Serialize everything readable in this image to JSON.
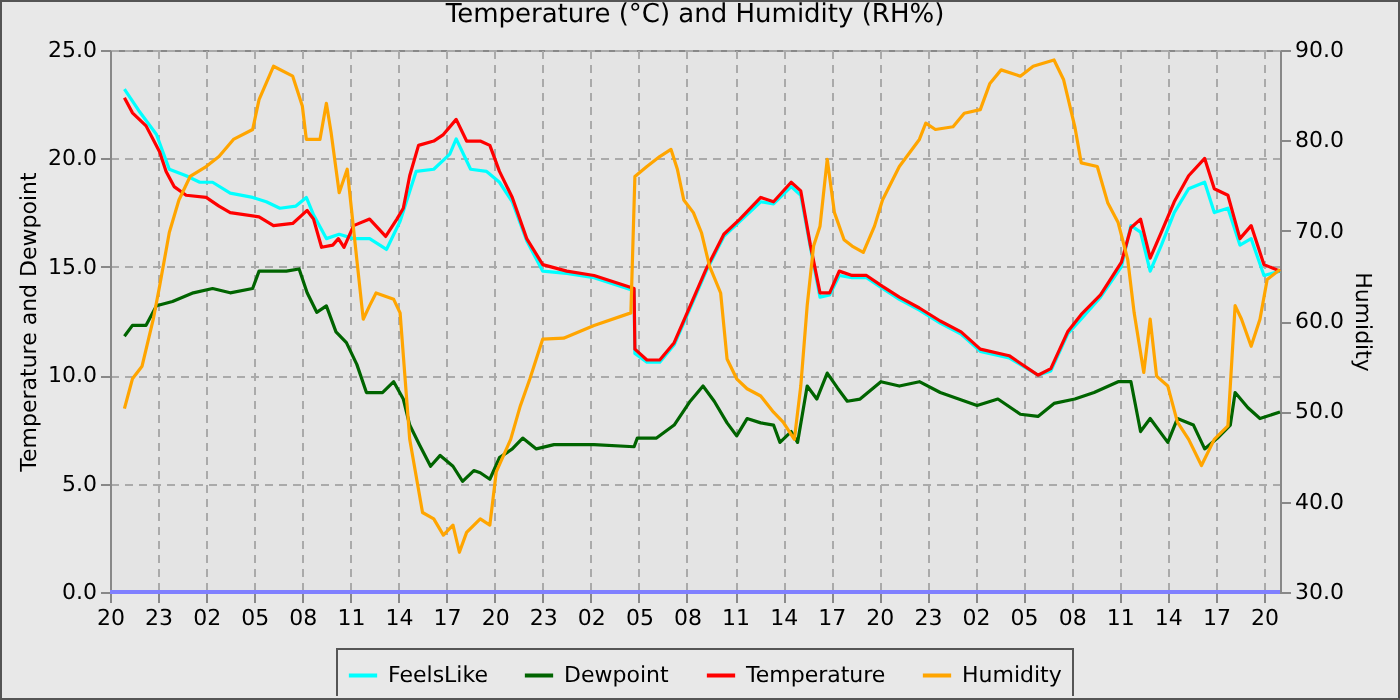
{
  "chart_data": {
    "type": "line",
    "title": "Temperature (°C) and Humidity (RH%)",
    "ylabel": "Temperature and Dewpoint",
    "y2label": "Humidity",
    "xlim": [
      "--01-01T20:00",
      "--01-04T21:00"
    ],
    "xticks": [
      {
        "value": "--01-01T20:00",
        "label": "20"
      },
      {
        "value": "--01-01T23:00",
        "label": "23"
      },
      {
        "value": "--01-02T02:00",
        "label": "02"
      },
      {
        "value": "--01-02T05:00",
        "label": "05"
      },
      {
        "value": "--01-02T08:00",
        "label": "08"
      },
      {
        "value": "--01-02T11:00",
        "label": "11"
      },
      {
        "value": "--01-02T14:00",
        "label": "14"
      },
      {
        "value": "--01-02T17:00",
        "label": "17"
      },
      {
        "value": "--01-02T20:00",
        "label": "20"
      },
      {
        "value": "--01-02T23:00",
        "label": "23"
      },
      {
        "value": "--01-03T02:00",
        "label": "02"
      },
      {
        "value": "--01-03T05:00",
        "label": "05"
      },
      {
        "value": "--01-03T08:00",
        "label": "08"
      },
      {
        "value": "--01-03T11:00",
        "label": "11"
      },
      {
        "value": "--01-03T14:00",
        "label": "14"
      },
      {
        "value": "--01-03T17:00",
        "label": "17"
      },
      {
        "value": "--01-03T20:00",
        "label": "20"
      },
      {
        "value": "--01-03T23:00",
        "label": "23"
      },
      {
        "value": "--01-04T02:00",
        "label": "02"
      },
      {
        "value": "--01-04T05:00",
        "label": "05"
      },
      {
        "value": "--01-04T08:00",
        "label": "08"
      },
      {
        "value": "--01-04T11:00",
        "label": "11"
      },
      {
        "value": "--01-04T14:00",
        "label": "14"
      },
      {
        "value": "--01-04T17:00",
        "label": "17"
      },
      {
        "value": "--01-04T20:00",
        "label": "20"
      }
    ],
    "ylim": [
      0,
      25
    ],
    "yticks": [
      {
        "value": 0,
        "label": "0.0"
      },
      {
        "value": 5,
        "label": "5.0"
      },
      {
        "value": 10,
        "label": "10.0"
      },
      {
        "value": 15,
        "label": "15.0"
      },
      {
        "value": 20,
        "label": "20.0"
      },
      {
        "value": 25,
        "label": "25.0"
      }
    ],
    "y2lim": [
      30,
      90
    ],
    "y2ticks": [
      {
        "value": 30,
        "label": "30.0"
      },
      {
        "value": 40,
        "label": "40.0"
      },
      {
        "value": 50,
        "label": "50.0"
      },
      {
        "value": 60,
        "label": "60.0"
      },
      {
        "value": 70,
        "label": "70.0"
      },
      {
        "value": 80,
        "label": "80.0"
      },
      {
        "value": 90,
        "label": "90.0"
      }
    ],
    "grid": true,
    "legend": "bottom",
    "ref_lines": [
      {
        "axis": "y",
        "value": 0,
        "color": "#8080ff"
      }
    ],
    "series": [
      {
        "name": "FeelsLike",
        "color": "#00ffff",
        "x": [
          "--01-01T20:54",
          "--01-01T21:48",
          "--01-01T22:54",
          "--01-01T23:42",
          "--01-02T00:45",
          "--01-02T01:36",
          "--01-02T02:24",
          "--01-02T03:30",
          "--01-02T04:54",
          "--01-02T05:45",
          "--01-02T06:36",
          "--01-02T07:36",
          "--01-02T08:15",
          "--01-02T08:42",
          "--01-02T09:30",
          "--01-02T10:18",
          "--01-02T11:12",
          "--01-02T12:12",
          "--01-02T13:15",
          "--01-02T14:06",
          "--01-02T15:06",
          "--01-02T16:12",
          "--01-02T17:12",
          "--01-02T17:36",
          "--01-02T18:30",
          "--01-02T19:30",
          "--01-02T20:18",
          "--01-02T21:06",
          "--01-02T22:00",
          "--01-02T23:00",
          "--01-03T00:30",
          "--01-03T02:12",
          "--01-03T04:42",
          "--01-03T04:45",
          "--01-03T05:30",
          "--01-03T06:18",
          "--01-03T07:12",
          "--01-03T08:12",
          "--01-03T09:12",
          "--01-03T10:18",
          "--01-03T11:18",
          "--01-03T12:36",
          "--01-03T13:24",
          "--01-03T14:30",
          "--01-03T15:06",
          "--01-03T15:42",
          "--01-03T16:18",
          "--01-03T16:54",
          "--01-03T17:30",
          "--01-03T18:18",
          "--01-03T19:12",
          "--01-03T20:12",
          "--01-03T21:15",
          "--01-03T22:30",
          "--01-03T23:48",
          "--01-04T01:06",
          "--01-04T02:18",
          "--01-04T04:06",
          "--01-04T05:54",
          "--01-04T06:42",
          "--01-04T07:45",
          "--01-04T08:36",
          "--01-04T09:48",
          "--01-04T11:06",
          "--01-04T11:42",
          "--01-04T12:18",
          "--01-04T12:54",
          "--01-04T13:36",
          "--01-04T14:24",
          "--01-04T15:18",
          "--01-04T16:18",
          "--01-04T16:54",
          "--01-04T17:45",
          "--01-04T18:30",
          "--01-04T19:12",
          "--01-04T20:00",
          "--01-04T21:00"
        ],
        "values": [
          23.2,
          22.2,
          21.1,
          19.5,
          19.2,
          18.9,
          18.9,
          18.4,
          18.2,
          18.0,
          17.7,
          17.8,
          18.2,
          17.4,
          16.3,
          16.5,
          16.3,
          16.3,
          15.8,
          17.1,
          19.4,
          19.5,
          20.2,
          20.9,
          19.5,
          19.4,
          18.9,
          18.0,
          16.2,
          14.8,
          14.7,
          14.5,
          13.9,
          11.0,
          10.6,
          10.6,
          11.4,
          13.1,
          14.8,
          16.4,
          17.1,
          18.0,
          17.9,
          18.7,
          18.3,
          15.9,
          13.6,
          13.7,
          14.6,
          14.5,
          14.5,
          14.0,
          13.5,
          13.0,
          12.4,
          11.9,
          11.1,
          10.8,
          10.0,
          10.2,
          11.9,
          12.6,
          13.6,
          15.0,
          16.9,
          16.6,
          14.8,
          16.0,
          17.5,
          18.6,
          18.9,
          17.5,
          17.7,
          16.0,
          16.3,
          14.6,
          14.8
        ]
      },
      {
        "name": "Dewpoint",
        "color": "#006400",
        "x": [
          "--01-01T20:54",
          "--01-01T21:24",
          "--01-01T22:15",
          "--01-01T22:54",
          "--01-01T23:54",
          "--01-02T01:12",
          "--01-02T02:24",
          "--01-02T03:30",
          "--01-02T04:54",
          "--01-02T05:18",
          "--01-02T07:00",
          "--01-02T07:48",
          "--01-02T08:18",
          "--01-02T08:54",
          "--01-02T09:30",
          "--01-02T10:06",
          "--01-02T10:45",
          "--01-02T11:24",
          "--01-02T12:00",
          "--01-02T13:00",
          "--01-02T13:42",
          "--01-02T14:18",
          "--01-02T14:42",
          "--01-02T15:18",
          "--01-02T16:00",
          "--01-02T16:36",
          "--01-02T17:24",
          "--01-02T18:00",
          "--01-02T18:42",
          "--01-02T19:06",
          "--01-02T19:42",
          "--01-02T20:18",
          "--01-02T21:06",
          "--01-02T21:45",
          "--01-02T22:36",
          "--01-02T23:42",
          "--01-03T02:12",
          "--01-03T04:42",
          "--01-03T04:54",
          "--01-03T06:06",
          "--01-03T07:12",
          "--01-03T08:12",
          "--01-03T09:00",
          "--01-03T09:42",
          "--01-03T10:30",
          "--01-03T11:06",
          "--01-03T11:45",
          "--01-03T12:36",
          "--01-03T13:24",
          "--01-03T13:48",
          "--01-03T14:30",
          "--01-03T14:54",
          "--01-03T15:30",
          "--01-03T16:06",
          "--01-03T16:45",
          "--01-03T17:24",
          "--01-03T18:00",
          "--01-03T18:48",
          "--01-03T20:06",
          "--01-03T21:15",
          "--01-03T22:30",
          "--01-03T23:48",
          "--01-04T02:06",
          "--01-04T03:24",
          "--01-04T04:48",
          "--01-04T05:54",
          "--01-04T06:54",
          "--01-04T08:12",
          "--01-04T09:24",
          "--01-04T10:54",
          "--01-04T11:42",
          "--01-04T12:18",
          "--01-04T12:54",
          "--01-04T14:00",
          "--01-04T14:36",
          "--01-04T15:36",
          "--01-04T16:18",
          "--01-04T17:06",
          "--01-04T17:54",
          "--01-04T18:12",
          "--01-04T19:00",
          "--01-04T19:45",
          "--01-04T21:00"
        ],
        "values": [
          11.8,
          12.3,
          12.3,
          13.2,
          13.4,
          13.8,
          14.0,
          13.8,
          14.0,
          14.8,
          14.8,
          14.9,
          13.8,
          12.9,
          13.2,
          12.0,
          11.5,
          10.5,
          9.2,
          9.2,
          9.7,
          8.9,
          7.7,
          6.8,
          5.8,
          6.3,
          5.8,
          5.1,
          5.6,
          5.5,
          5.2,
          6.2,
          6.6,
          7.1,
          6.6,
          6.8,
          6.8,
          6.7,
          7.1,
          7.1,
          7.7,
          8.8,
          9.5,
          8.8,
          7.8,
          7.2,
          8.0,
          7.8,
          7.7,
          6.9,
          7.4,
          6.9,
          9.5,
          8.9,
          10.1,
          9.4,
          8.8,
          8.9,
          9.7,
          9.5,
          9.7,
          9.2,
          8.6,
          8.9,
          8.2,
          8.1,
          8.7,
          8.9,
          9.2,
          9.7,
          9.7,
          7.4,
          8.0,
          6.9,
          8.0,
          7.7,
          6.6,
          7.1,
          7.7,
          9.2,
          8.5,
          8.0,
          8.3
        ]
      },
      {
        "name": "Temperature",
        "color": "#ff0000",
        "x": [
          "--01-01T20:54",
          "--01-01T21:24",
          "--01-01T22:15",
          "--01-01T23:06",
          "--01-01T23:30",
          "--01-02T00:00",
          "--01-02T00:45",
          "--01-02T02:00",
          "--01-02T02:48",
          "--01-02T03:30",
          "--01-02T05:18",
          "--01-02T06:12",
          "--01-02T07:24",
          "--01-02T08:18",
          "--01-02T08:42",
          "--01-02T09:12",
          "--01-02T09:54",
          "--01-02T10:15",
          "--01-02T10:36",
          "--01-02T11:12",
          "--01-02T12:12",
          "--01-02T13:12",
          "--01-02T13:54",
          "--01-02T14:18",
          "--01-02T14:42",
          "--01-02T15:15",
          "--01-02T16:12",
          "--01-02T16:48",
          "--01-02T17:36",
          "--01-02T18:15",
          "--01-02T19:06",
          "--01-02T19:42",
          "--01-02T20:18",
          "--01-02T21:06",
          "--01-02T22:00",
          "--01-02T23:00",
          "--01-03T00:30",
          "--01-03T02:12",
          "--01-03T04:42",
          "--01-03T04:45",
          "--01-03T05:30",
          "--01-03T06:18",
          "--01-03T07:12",
          "--01-03T08:12",
          "--01-03T09:12",
          "--01-03T10:18",
          "--01-03T11:18",
          "--01-03T12:36",
          "--01-03T13:24",
          "--01-03T14:30",
          "--01-03T15:06",
          "--01-03T15:42",
          "--01-03T16:18",
          "--01-03T16:54",
          "--01-03T17:30",
          "--01-03T18:18",
          "--01-03T19:12",
          "--01-03T20:12",
          "--01-03T21:15",
          "--01-03T22:30",
          "--01-03T23:48",
          "--01-04T01:06",
          "--01-04T02:18",
          "--01-04T04:06",
          "--01-04T05:54",
          "--01-04T06:42",
          "--01-04T07:45",
          "--01-04T08:36",
          "--01-04T09:48",
          "--01-04T11:06",
          "--01-04T11:42",
          "--01-04T12:18",
          "--01-04T12:54",
          "--01-04T13:36",
          "--01-04T14:24",
          "--01-04T15:18",
          "--01-04T16:18",
          "--01-04T16:54",
          "--01-04T17:45",
          "--01-04T18:30",
          "--01-04T19:12",
          "--01-04T20:00",
          "--01-04T21:00"
        ],
        "values": [
          22.8,
          22.1,
          21.5,
          20.3,
          19.4,
          18.7,
          18.3,
          18.2,
          17.8,
          17.5,
          17.3,
          16.9,
          17.0,
          17.6,
          17.2,
          15.9,
          16.0,
          16.3,
          15.9,
          16.9,
          17.2,
          16.4,
          17.2,
          17.7,
          19.2,
          20.6,
          20.8,
          21.1,
          21.8,
          20.8,
          20.8,
          20.6,
          19.4,
          18.2,
          16.3,
          15.1,
          14.8,
          14.6,
          14.0,
          11.2,
          10.7,
          10.7,
          11.5,
          13.2,
          14.9,
          16.5,
          17.2,
          18.2,
          18.0,
          18.9,
          18.5,
          16.0,
          13.8,
          13.8,
          14.8,
          14.6,
          14.6,
          14.1,
          13.6,
          13.1,
          12.5,
          12.0,
          11.2,
          10.9,
          10.0,
          10.3,
          12.0,
          12.8,
          13.7,
          15.2,
          16.8,
          17.2,
          15.4,
          16.6,
          18.0,
          19.2,
          20.0,
          18.6,
          18.3,
          16.3,
          16.9,
          15.1,
          14.8
        ]
      },
      {
        "name": "Humidity",
        "color": "#ffa500",
        "axis": "y2",
        "x": [
          "--01-01T20:54",
          "--01-01T21:24",
          "--01-01T22:00",
          "--01-01T22:42",
          "--01-01T23:06",
          "--01-01T23:42",
          "--01-02T00:18",
          "--01-02T01:00",
          "--01-02T02:00",
          "--01-02T02:48",
          "--01-02T03:42",
          "--01-02T04:54",
          "--01-02T05:18",
          "--01-02T06:12",
          "--01-02T07:24",
          "--01-02T08:00",
          "--01-02T08:15",
          "--01-02T09:06",
          "--01-02T09:30",
          "--01-02T09:48",
          "--01-02T10:18",
          "--01-02T10:48",
          "--01-02T11:24",
          "--01-02T11:48",
          "--01-02T12:12",
          "--01-02T12:36",
          "--01-02T13:42",
          "--01-02T14:06",
          "--01-02T14:42",
          "--01-02T15:30",
          "--01-02T16:12",
          "--01-02T16:48",
          "--01-02T17:24",
          "--01-02T17:48",
          "--01-02T18:15",
          "--01-02T19:06",
          "--01-02T19:42",
          "--01-02T20:06",
          "--01-02T21:00",
          "--01-02T21:36",
          "--01-02T22:12",
          "--01-02T23:00",
          "--01-03T00:18",
          "--01-03T02:12",
          "--01-03T04:30",
          "--01-03T04:45",
          "--01-03T05:30",
          "--01-03T06:18",
          "--01-03T07:00",
          "--01-03T07:24",
          "--01-03T07:48",
          "--01-03T08:24",
          "--01-03T08:54",
          "--01-03T09:24",
          "--01-03T10:06",
          "--01-03T10:30",
          "--01-03T11:06",
          "--01-03T11:45",
          "--01-03T12:36",
          "--01-03T13:24",
          "--01-03T14:00",
          "--01-03T14:42",
          "--01-03T15:06",
          "--01-03T15:30",
          "--01-03T15:54",
          "--01-03T16:18",
          "--01-03T16:45",
          "--01-03T17:12",
          "--01-03T17:48",
          "--01-03T18:18",
          "--01-03T19:00",
          "--01-03T19:42",
          "--01-03T20:12",
          "--01-03T21:15",
          "--01-03T22:30",
          "--01-03T22:54",
          "--01-03T23:30",
          "--01-04T00:36",
          "--01-04T01:18",
          "--01-04T02:18",
          "--01-04T02:54",
          "--01-04T03:36",
          "--01-04T04:48",
          "--01-04T05:36",
          "--01-04T06:54",
          "--01-04T07:30",
          "--01-04T08:12",
          "--01-04T08:36",
          "--01-04T09:36",
          "--01-04T10:15",
          "--01-04T10:54",
          "--01-04T11:30",
          "--01-04T11:54",
          "--01-04T12:30",
          "--01-04T12:54",
          "--01-04T13:18",
          "--01-04T14:00",
          "--01-04T14:36",
          "--01-04T15:18",
          "--01-04T16:06",
          "--01-04T16:54",
          "--01-04T17:45",
          "--01-04T18:12",
          "--01-04T18:36",
          "--01-04T19:12",
          "--01-04T19:45",
          "--01-04T20:12",
          "--01-04T21:00"
        ],
        "values": [
          50.3,
          53.6,
          55.0,
          60.2,
          63.9,
          69.8,
          73.4,
          76.0,
          77.1,
          78.2,
          80.1,
          81.2,
          84.5,
          88.2,
          87.1,
          83.8,
          80.1,
          80.1,
          84.1,
          80.8,
          74.2,
          76.8,
          66.8,
          60.2,
          61.7,
          63.1,
          62.4,
          60.9,
          46.9,
          38.8,
          38.1,
          36.3,
          37.4,
          34.4,
          36.6,
          38.1,
          37.4,
          43.3,
          46.9,
          50.6,
          53.6,
          58.0,
          58.1,
          59.5,
          60.9,
          76.0,
          77.1,
          78.2,
          79.0,
          76.8,
          73.4,
          72.0,
          69.8,
          66.1,
          63.1,
          55.8,
          53.6,
          52.5,
          51.7,
          49.9,
          48.8,
          46.9,
          52.8,
          61.7,
          68.3,
          70.5,
          77.9,
          72.0,
          69.0,
          68.3,
          67.6,
          70.5,
          73.4,
          77.1,
          80.1,
          81.9,
          81.2,
          81.5,
          83.0,
          83.4,
          86.3,
          87.8,
          87.1,
          88.2,
          88.9,
          86.7,
          81.5,
          77.5,
          77.1,
          73.1,
          70.9,
          66.8,
          60.9,
          54.3,
          60.2,
          53.9,
          52.8,
          48.8,
          46.9,
          44.0,
          46.9,
          48.4,
          61.7,
          60.2,
          57.2,
          60.2,
          64.6,
          65.7
        ]
      }
    ]
  }
}
